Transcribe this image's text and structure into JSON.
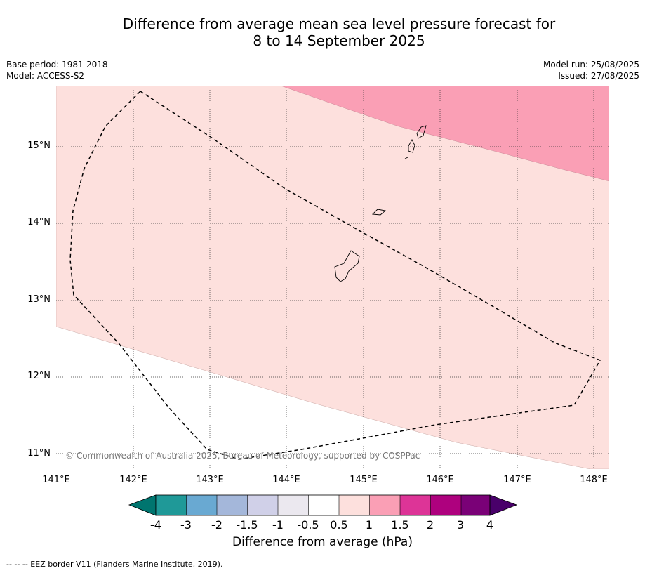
{
  "title": {
    "line1": "Difference from average mean sea level pressure forecast for",
    "line2": "8 to 14 September 2025"
  },
  "meta": {
    "base_period": "Base period: 1981-2018",
    "model": "Model: ACCESS-S2",
    "model_run": "Model run: 25/08/2025",
    "issued": "Issued: 27/08/2025"
  },
  "map": {
    "lon_range": [
      141.0,
      148.2
    ],
    "lat_range": [
      10.8,
      15.8
    ],
    "lon_ticks": [
      "141°E",
      "142°E",
      "143°E",
      "144°E",
      "145°E",
      "146°E",
      "147°E",
      "148°E"
    ],
    "lat_ticks": [
      "15°N",
      "14°N",
      "13°N",
      "12°N",
      "11°N"
    ],
    "fill_colors": {
      "range_0.5_1": "#fde0dd",
      "range_1_1.5": "#fa9fb5",
      "range_-0.5_0.5": "#ffffff"
    },
    "copyright": "© Commonwealth of Australia 2025, Bureau of Meteorology, supported by COSPPac"
  },
  "colorbar": {
    "title": "Difference from average (hPa)",
    "labels": [
      "-4",
      "-3",
      "-2",
      "-1.5",
      "-1",
      "-0.5",
      "0.5",
      "1",
      "1.5",
      "2",
      "3",
      "4"
    ],
    "colors": [
      "#00756f",
      "#1f9998",
      "#69a9d2",
      "#a4b7da",
      "#d0d0e8",
      "#ebe8ef",
      "#ffffff",
      "#fde0dd",
      "#fa9fb5",
      "#dd3497",
      "#ae017e",
      "#7a0177",
      "#49006a"
    ]
  },
  "footnote": "--  --  -- EEZ border V11 (Flanders Marine Institute, 2019)."
}
